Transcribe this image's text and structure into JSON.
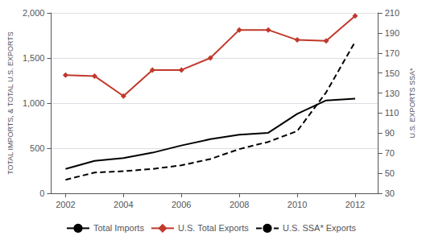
{
  "chart_data": {
    "type": "line",
    "x": [
      2002,
      2003,
      2004,
      2005,
      2006,
      2007,
      2008,
      2009,
      2010,
      2011,
      2012
    ],
    "series": [
      {
        "name": "Total Imports",
        "color": "#000000",
        "line_style": "solid",
        "axis": "y",
        "values": [
          270,
          360,
          390,
          450,
          530,
          600,
          650,
          670,
          880,
          1030,
          1050
        ]
      },
      {
        "name": "U.S. Total Exports",
        "color": "#c0392b",
        "line_style": "solid",
        "marker": "diamond",
        "axis": "y2",
        "values": [
          148,
          147,
          127,
          153,
          153,
          165,
          193,
          193,
          183,
          182,
          207
        ]
      },
      {
        "name": "U.S. SSA* Exports",
        "color": "#000000",
        "line_style": "dashed",
        "axis": "y",
        "values": [
          150,
          230,
          245,
          270,
          310,
          380,
          490,
          570,
          690,
          1120,
          1680
        ]
      }
    ],
    "xlim": [
      2001.5,
      2012.8
    ],
    "xticks": [
      2002,
      2004,
      2006,
      2008,
      2010,
      2012
    ],
    "ylim": [
      0,
      2000
    ],
    "yticks": [
      0,
      500,
      {
        "value": 1000,
        "label": "1,000"
      },
      {
        "value": 1500,
        "label": "1,500"
      },
      {
        "value": 2000,
        "label": "2,000"
      }
    ],
    "y2lim": [
      30,
      210
    ],
    "y2ticks": [
      30,
      50,
      70,
      90,
      110,
      130,
      150,
      170,
      190,
      210
    ],
    "y_label": "TOTAL IMPORTS, & TOTAL U.S. EXPORTS",
    "y2_label": "U.S. EXPORTS SSA*",
    "grid": true,
    "legend": "bottom"
  }
}
